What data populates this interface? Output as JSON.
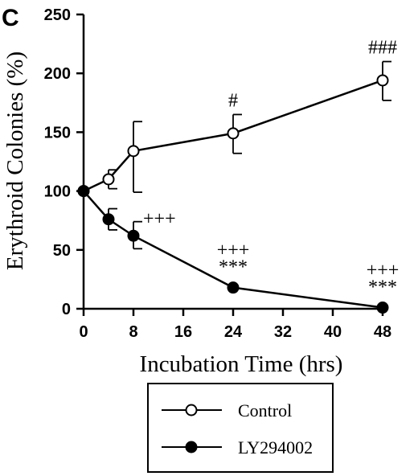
{
  "chart_data": {
    "type": "line",
    "panel_label": "C",
    "title": "",
    "xlabel": "Incubation Time (hrs)",
    "ylabel": "Erythroid Colonies (%)",
    "xlim": [
      0,
      48
    ],
    "ylim": [
      0,
      250
    ],
    "x_ticks": [
      0,
      8,
      16,
      24,
      32,
      40,
      48
    ],
    "y_ticks": [
      0,
      50,
      100,
      150,
      200,
      250
    ],
    "x": [
      0,
      4,
      8,
      24,
      48
    ],
    "series": [
      {
        "name": "Control",
        "marker": "open-circle",
        "values": [
          100,
          110,
          134,
          149,
          194
        ],
        "error_up": [
          0,
          8,
          25,
          16,
          16
        ],
        "error_down": [
          0,
          8,
          35,
          17,
          17
        ],
        "annotations": [
          {
            "x": 24,
            "text": "#"
          },
          {
            "x": 48,
            "text": "###"
          }
        ]
      },
      {
        "name": "LY294002",
        "marker": "filled-circle",
        "values": [
          100,
          76,
          62,
          18,
          1
        ],
        "error_up": [
          0,
          9,
          12,
          0,
          0
        ],
        "error_down": [
          0,
          9,
          11,
          0,
          0
        ],
        "annotations": [
          {
            "x": 8,
            "lines": [
              "+++"
            ]
          },
          {
            "x": 24,
            "lines": [
              "+++",
              "***"
            ]
          },
          {
            "x": 48,
            "lines": [
              "+++",
              "***"
            ]
          }
        ]
      }
    ],
    "legend": {
      "placement": "bottom",
      "entries": [
        "Control",
        "LY294002"
      ]
    },
    "grid": false
  }
}
